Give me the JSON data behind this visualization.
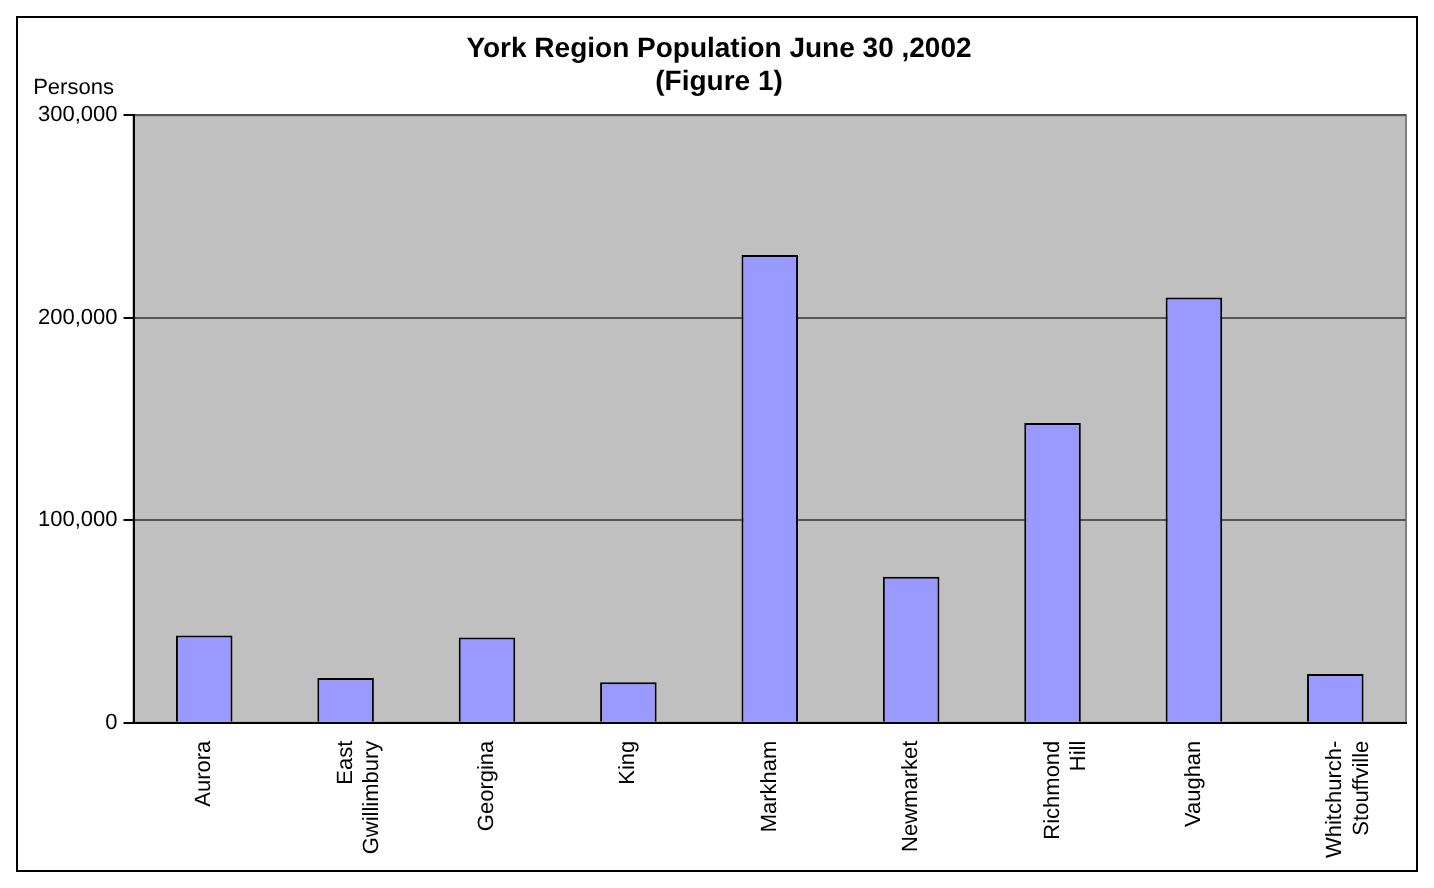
{
  "chart_data": {
    "type": "bar",
    "title": "York Region Population June 30 ,2002\n(Figure 1)",
    "ylabel": "Persons",
    "categories": [
      "Aurora",
      "East Gwillimbury",
      "Georgina",
      "King",
      "Markham",
      "Newmarket",
      "Richmond Hill",
      "Vaughan",
      "Whitchurch-Stouffville"
    ],
    "values": [
      43000,
      22000,
      42000,
      20000,
      231000,
      72000,
      148000,
      210000,
      24000
    ],
    "color": "#9999ff",
    "ylim": [
      0,
      300000
    ],
    "yticks": [
      0,
      {
        "value": 100000,
        "label": "100,000"
      },
      {
        "value": 200000,
        "label": "200,000"
      },
      {
        "value": 300000,
        "label": "300,000"
      }
    ],
    "grid": "y",
    "legend": false
  }
}
